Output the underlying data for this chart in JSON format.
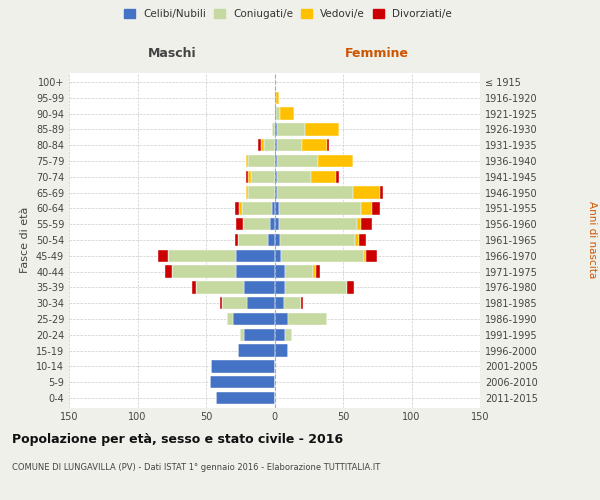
{
  "age_groups": [
    "0-4",
    "5-9",
    "10-14",
    "15-19",
    "20-24",
    "25-29",
    "30-34",
    "35-39",
    "40-44",
    "45-49",
    "50-54",
    "55-59",
    "60-64",
    "65-69",
    "70-74",
    "75-79",
    "80-84",
    "85-89",
    "90-94",
    "95-99",
    "100+"
  ],
  "birth_years": [
    "2011-2015",
    "2006-2010",
    "2001-2005",
    "1996-2000",
    "1991-1995",
    "1986-1990",
    "1981-1985",
    "1976-1980",
    "1971-1975",
    "1966-1970",
    "1961-1965",
    "1956-1960",
    "1951-1955",
    "1946-1950",
    "1941-1945",
    "1936-1940",
    "1931-1935",
    "1926-1930",
    "1921-1925",
    "1916-1920",
    "≤ 1915"
  ],
  "male": {
    "celibe": [
      43,
      47,
      46,
      27,
      22,
      30,
      20,
      22,
      28,
      28,
      5,
      3,
      2,
      0,
      0,
      0,
      0,
      0,
      0,
      0,
      0
    ],
    "coniugato": [
      0,
      0,
      0,
      0,
      3,
      5,
      18,
      35,
      47,
      50,
      22,
      20,
      22,
      19,
      17,
      19,
      8,
      2,
      0,
      0,
      0
    ],
    "vedovo": [
      0,
      0,
      0,
      0,
      0,
      0,
      0,
      0,
      0,
      0,
      0,
      0,
      2,
      2,
      2,
      2,
      2,
      0,
      0,
      0,
      0
    ],
    "divorziato": [
      0,
      0,
      0,
      0,
      0,
      0,
      2,
      3,
      5,
      7,
      2,
      5,
      3,
      0,
      2,
      0,
      2,
      0,
      0,
      0,
      0
    ]
  },
  "female": {
    "nubile": [
      0,
      0,
      0,
      10,
      8,
      10,
      7,
      8,
      8,
      5,
      4,
      3,
      3,
      2,
      2,
      2,
      2,
      2,
      1,
      1,
      0
    ],
    "coniugata": [
      0,
      0,
      0,
      0,
      5,
      28,
      12,
      45,
      20,
      60,
      55,
      57,
      60,
      55,
      25,
      30,
      18,
      20,
      3,
      0,
      0
    ],
    "vedova": [
      0,
      0,
      0,
      0,
      0,
      0,
      0,
      0,
      2,
      2,
      3,
      3,
      8,
      20,
      18,
      25,
      18,
      25,
      10,
      2,
      0
    ],
    "divorziata": [
      0,
      0,
      0,
      0,
      0,
      0,
      2,
      5,
      3,
      8,
      5,
      8,
      6,
      2,
      2,
      0,
      2,
      0,
      0,
      0,
      0
    ]
  },
  "colors": {
    "celibe": "#4472c4",
    "coniugato": "#c5d9a0",
    "vedovo": "#ffc000",
    "divorziato": "#cc0000"
  },
  "xlim": 150,
  "title": "Popolazione per età, sesso e stato civile - 2016",
  "subtitle": "COMUNE DI LUNGAVILLA (PV) - Dati ISTAT 1° gennaio 2016 - Elaborazione TUTTITALIA.IT",
  "ylabel_left": "Fasce di età",
  "ylabel_right": "Anni di nascita",
  "xlabel_left": "Maschi",
  "xlabel_right": "Femmine",
  "legend_labels": [
    "Celibi/Nubili",
    "Coniugati/e",
    "Vedovi/e",
    "Divorziati/e"
  ],
  "bg_color": "#f0f0eb",
  "plot_bg": "#ffffff",
  "anni_label_color": "#cc5500",
  "femmine_color": "#cc5500",
  "maschi_color": "#444444"
}
